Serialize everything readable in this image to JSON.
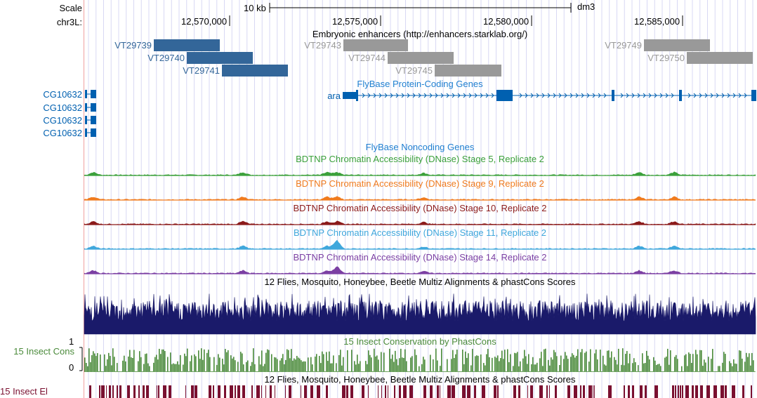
{
  "scale_row": {
    "label": "Scale",
    "bar_label": "10 kb",
    "assembly": "dm3"
  },
  "position_row": {
    "chrom_label": "chr3L:",
    "ticks": [
      "12,570,000",
      "12,575,000",
      "12,580,000",
      "12,585,000"
    ]
  },
  "tracks": {
    "enhancers": {
      "title": "Embryonic enhancers (http://enhancers.starklab.org/)",
      "items": [
        {
          "name": "VT29739",
          "style": "blue"
        },
        {
          "name": "VT29740",
          "style": "blue"
        },
        {
          "name": "VT29741",
          "style": "blue"
        },
        {
          "name": "VT29743",
          "style": "gray"
        },
        {
          "name": "VT29744",
          "style": "gray"
        },
        {
          "name": "VT29745",
          "style": "gray"
        },
        {
          "name": "VT29749",
          "style": "gray"
        },
        {
          "name": "VT29750",
          "style": "gray"
        }
      ]
    },
    "protein_coding": {
      "title": "FlyBase Protein-Coding Genes",
      "genes": [
        "CG10632",
        "CG10632",
        "CG10632",
        "CG10632",
        "ara"
      ]
    },
    "noncoding": {
      "title": "FlyBase Noncoding Genes"
    },
    "dnase": [
      {
        "title": "BDTNP Chromatin Accessibility (DNase) Stage 5, Replicate 2",
        "color": "#3ba03b"
      },
      {
        "title": "BDTNP Chromatin Accessibility (DNase) Stage 9, Replicate 2",
        "color": "#f07b1e"
      },
      {
        "title": "BDTNP Chromatin Accessibility (DNase) Stage 10, Replicate 2",
        "color": "#8b1a1a"
      },
      {
        "title": "BDTNP Chromatin Accessibility (DNase) Stage 11, Replicate 2",
        "color": "#3fa7dc"
      },
      {
        "title": "BDTNP Chromatin Accessibility (DNase) Stage 14, Replicate 2",
        "color": "#7b3fa3"
      }
    ],
    "multiz": {
      "title": "12 Flies, Mosquito, Honeybee, Beetle Multiz Alignments & phastCons Scores"
    },
    "phastcons": {
      "title": "15 Insect Conservation by PhastCons",
      "side_label": "15 Insect Cons",
      "axis_max": "1",
      "axis_min": "0"
    },
    "elements": {
      "title": "12 Flies, Mosquito, Honeybee, Beetle Multiz Alignments & phastCons Scores",
      "side_label": "15 Insect El"
    }
  },
  "colors": {
    "gene_blue": "#0060b0",
    "enhancer_blue": "#336699",
    "enhancer_gray": "#999999",
    "multiz": "#1a1a6a",
    "cons_green": "#4a8a3a",
    "element_maroon": "#7a1030"
  }
}
